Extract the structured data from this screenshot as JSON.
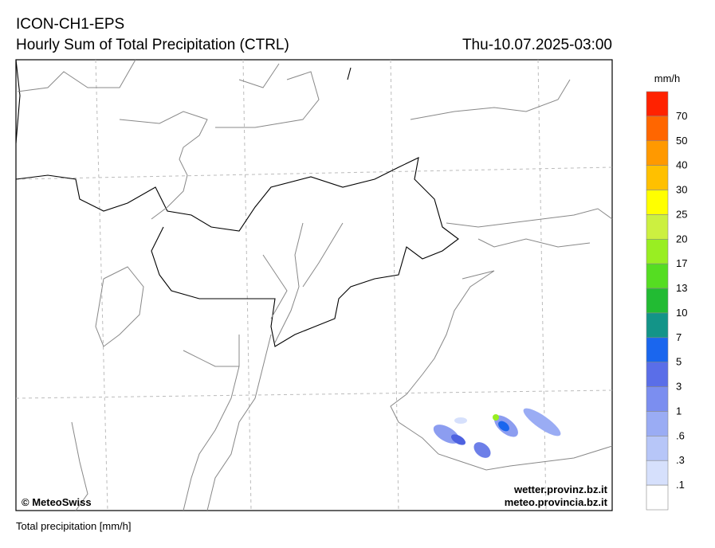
{
  "header": {
    "model": "ICON-CH1-EPS",
    "title": "Hourly Sum of Total Precipitation (CTRL)",
    "valid_time": "Thu-10.07.2025-03:00"
  },
  "legend": {
    "unit": "mm/h",
    "colors": [
      "#ff2200",
      "#ff6600",
      "#ff9900",
      "#ffc000",
      "#ffff00",
      "#ccf040",
      "#99ee22",
      "#55dd22",
      "#22bb33",
      "#139488",
      "#1a66ee",
      "#5a6ee8",
      "#7b8ef0",
      "#9aacf4",
      "#b7c6f8",
      "#d6e0fc",
      "#ffffff"
    ],
    "labels": [
      "70",
      "50",
      "40",
      "30",
      "25",
      "20",
      "17",
      "13",
      "10",
      "7",
      "5",
      "3",
      "1",
      ".6",
      ".3",
      ".1"
    ]
  },
  "credits": {
    "copyright": "© MeteoSwiss",
    "site1": "wetter.provinz.bz.it",
    "site2": "meteo.provincia.bz.it"
  },
  "footer": "Total precipitation [mm/h]"
}
